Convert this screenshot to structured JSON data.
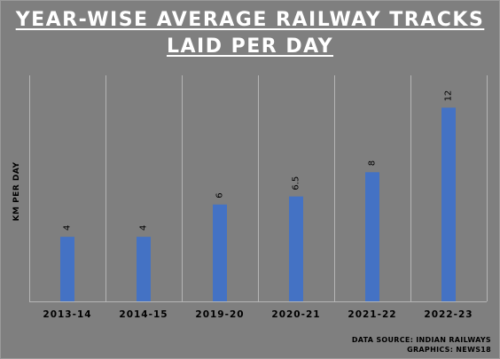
{
  "title_line1": "YEAR-WISE AVERAGE RAILWAY TRACKS",
  "title_line2": "LAID PER DAY",
  "source_line1": "DATA SOURCE: INDIAN RAILWAYS",
  "source_line2": "GRAPHICS: NEWS18",
  "chart_data": {
    "type": "bar",
    "title": "YEAR-WISE AVERAGE RAILWAY TRACKS LAID PER DAY",
    "ylabel": "KM PER DAY",
    "xlabel": "",
    "categories": [
      "2013-14",
      "2014-15",
      "2019-20",
      "2020-21",
      "2021-22",
      "2022-23"
    ],
    "values": [
      4,
      4,
      6,
      6.5,
      8,
      12
    ],
    "data_labels": [
      "4",
      "4",
      "6",
      "6.5",
      "8",
      "12"
    ],
    "ylim": [
      0,
      14
    ],
    "bar_color": "#4472c4",
    "grid": "vertical separators between categories",
    "legend": "none"
  }
}
